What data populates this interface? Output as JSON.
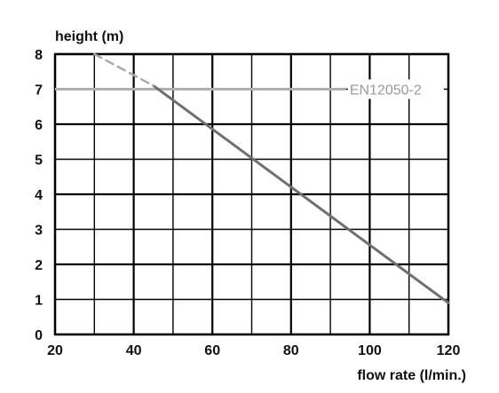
{
  "chart_data": {
    "type": "line",
    "title": "",
    "xlabel": "flow rate (l/min.)",
    "ylabel": "height (m)",
    "xlim": [
      20,
      120
    ],
    "ylim": [
      0,
      8
    ],
    "x_ticks": [
      "20",
      "40",
      "60",
      "80",
      "100",
      "120"
    ],
    "y_ticks": [
      "0",
      "1",
      "2",
      "3",
      "4",
      "5",
      "6",
      "7",
      "8"
    ],
    "grid": true,
    "series": [
      {
        "style": "solid",
        "color": "#6f6f6f",
        "x": [
          45,
          120
        ],
        "y": [
          7.1,
          0.9
        ]
      },
      {
        "style": "dashed",
        "color": "#a8a8a8",
        "x": [
          30,
          45
        ],
        "y": [
          8.0,
          7.1
        ]
      }
    ],
    "reference_lines": [
      {
        "label": "EN12050-2",
        "y": 7.0,
        "x_from": 20,
        "x_to": 94,
        "color": "#b0b0b0"
      }
    ],
    "legend": "none"
  }
}
